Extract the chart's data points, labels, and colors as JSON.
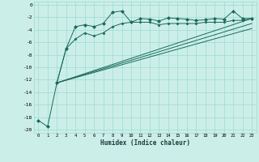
{
  "xlabel": "Humidex (Indice chaleur)",
  "bg_color": "#cceee8",
  "grid_color": "#99ddcc",
  "line_color": "#1a6b5a",
  "xlim": [
    -0.5,
    23.5
  ],
  "ylim": [
    -20.5,
    0.5
  ],
  "yticks": [
    0,
    -2,
    -4,
    -6,
    -8,
    -10,
    -12,
    -14,
    -16,
    -18,
    -20
  ],
  "xticks": [
    0,
    1,
    2,
    3,
    4,
    5,
    6,
    7,
    8,
    9,
    10,
    11,
    12,
    13,
    14,
    15,
    16,
    17,
    18,
    19,
    20,
    21,
    22,
    23
  ],
  "line1_x": [
    0,
    1,
    2,
    3,
    4,
    5,
    6,
    7,
    8,
    9,
    10,
    11,
    12,
    13,
    14,
    15,
    16,
    17,
    18,
    19,
    20,
    21,
    22,
    23
  ],
  "line1_y": [
    -18.5,
    -19.5,
    -12.5,
    -7.0,
    -3.5,
    -3.2,
    -3.5,
    -3.0,
    -1.2,
    -1.0,
    -2.8,
    -2.2,
    -2.3,
    -2.6,
    -2.1,
    -2.2,
    -2.3,
    -2.5,
    -2.4,
    -2.2,
    -2.3,
    -1.0,
    -2.2,
    -2.2
  ],
  "line2_x": [
    2,
    3,
    4,
    5,
    6,
    7,
    8,
    9,
    10,
    11,
    12,
    13,
    14,
    15,
    16,
    17,
    18,
    19,
    20,
    21,
    22,
    23
  ],
  "line2_y": [
    -12.5,
    -7.0,
    -5.5,
    -4.5,
    -5.0,
    -4.5,
    -3.5,
    -3.0,
    -2.8,
    -2.8,
    -2.8,
    -3.2,
    -3.0,
    -3.0,
    -3.0,
    -3.0,
    -2.8,
    -2.8,
    -2.8,
    -2.5,
    -2.5,
    -2.2
  ],
  "line3_x": [
    2,
    23
  ],
  "line3_y": [
    -12.5,
    -2.2
  ],
  "line4_x": [
    2,
    23
  ],
  "line4_y": [
    -12.5,
    -3.0
  ],
  "line5_x": [
    2,
    23
  ],
  "line5_y": [
    -12.5,
    -3.8
  ]
}
